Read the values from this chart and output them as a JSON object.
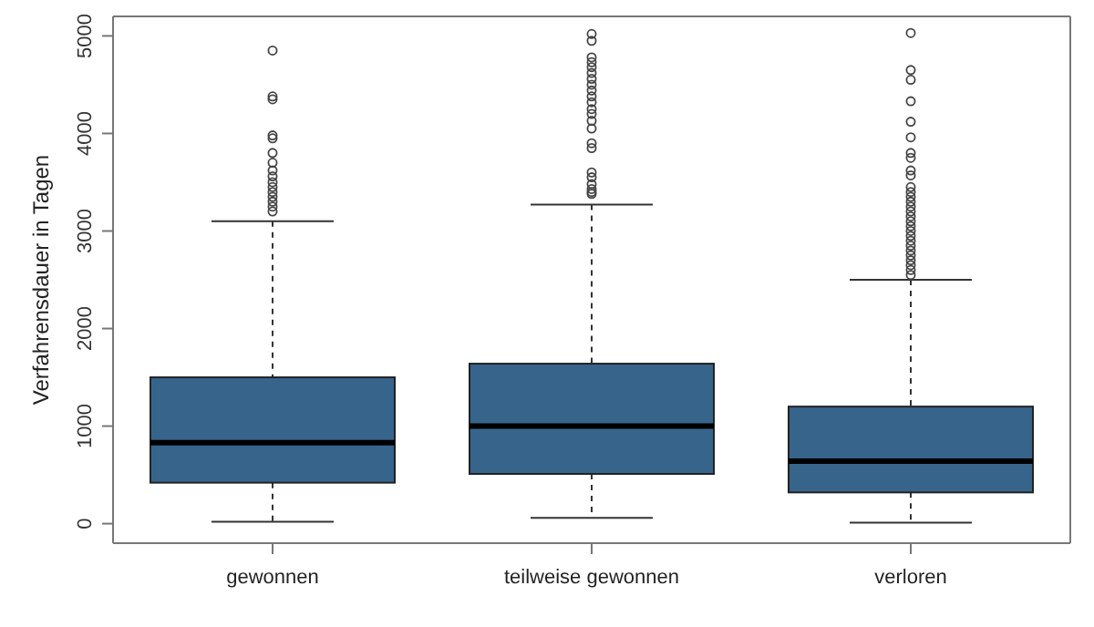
{
  "chart_data": {
    "type": "box",
    "ylabel": "Verfahrensdauer in Tagen",
    "categories": [
      "gewonnen",
      "teilweise gewonnen",
      "verloren"
    ],
    "color": "#37648b",
    "ylim": [
      -200,
      5200
    ],
    "yticks": [
      0,
      1000,
      2000,
      3000,
      4000,
      5000
    ],
    "boxes": [
      {
        "low": 20,
        "q1": 420,
        "median": 830,
        "q3": 1500,
        "high": 3100,
        "outliers": [
          4850,
          4380,
          4350,
          3980,
          3950,
          3800,
          3700,
          3620,
          3560,
          3500,
          3450,
          3400,
          3350,
          3300,
          3250,
          3200
        ]
      },
      {
        "low": 60,
        "q1": 510,
        "median": 1000,
        "q3": 1640,
        "high": 3270,
        "outliers": [
          5020,
          4950,
          4780,
          4730,
          4680,
          4620,
          4560,
          4500,
          4440,
          4380,
          4320,
          4250,
          4200,
          4130,
          4050,
          3900,
          3850,
          3600,
          3550,
          3480,
          3430,
          3400,
          3380
        ]
      },
      {
        "low": 10,
        "q1": 320,
        "median": 640,
        "q3": 1200,
        "high": 2500,
        "outliers": [
          5030,
          4650,
          4550,
          4330,
          4120,
          3960,
          3800,
          3750,
          3620,
          3570,
          3450,
          3400,
          3350,
          3300,
          3250,
          3200,
          3150,
          3100,
          3050,
          3000,
          2950,
          2900,
          2850,
          2800,
          2750,
          2700,
          2650,
          2600,
          2550
        ]
      }
    ]
  }
}
